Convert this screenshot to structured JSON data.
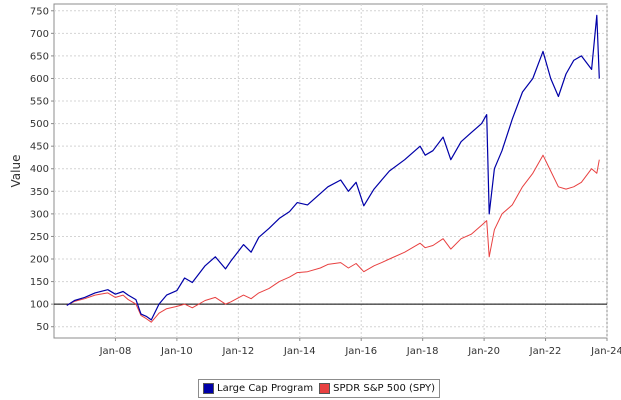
{
  "chart_data": {
    "type": "line",
    "title": "",
    "xlabel": "",
    "ylabel": "Value",
    "ylim": [
      25,
      765
    ],
    "xlim": [
      "2006-01",
      "2024-01"
    ],
    "y_ticks": [
      50,
      100,
      150,
      200,
      250,
      300,
      350,
      400,
      450,
      500,
      550,
      600,
      650,
      700,
      750
    ],
    "x_ticks": [
      {
        "date": "2008-01",
        "label": "Jan-08"
      },
      {
        "date": "2010-01",
        "label": "Jan-10"
      },
      {
        "date": "2012-01",
        "label": "Jan-12"
      },
      {
        "date": "2014-01",
        "label": "Jan-14"
      },
      {
        "date": "2016-01",
        "label": "Jan-16"
      },
      {
        "date": "2018-01",
        "label": "Jan-18"
      },
      {
        "date": "2020-01",
        "label": "Jan-20"
      },
      {
        "date": "2022-01",
        "label": "Jan-22"
      },
      {
        "date": "2024-01",
        "label": "Jan-24"
      }
    ],
    "reference_line": 100,
    "grid": true,
    "legend_position": "bottom",
    "series": [
      {
        "name": "Large Cap Program",
        "color": "#0000a8",
        "x": [
          "2006-06",
          "2006-09",
          "2007-01",
          "2007-05",
          "2007-10",
          "2008-01",
          "2008-04",
          "2008-06",
          "2008-09",
          "2008-11",
          "2009-01",
          "2009-03",
          "2009-06",
          "2009-09",
          "2010-01",
          "2010-04",
          "2010-07",
          "2010-12",
          "2011-04",
          "2011-08",
          "2011-10",
          "2012-03",
          "2012-06",
          "2012-09",
          "2013-01",
          "2013-05",
          "2013-09",
          "2013-12",
          "2014-04",
          "2014-09",
          "2014-12",
          "2015-05",
          "2015-08",
          "2015-11",
          "2016-02",
          "2016-06",
          "2016-09",
          "2016-12",
          "2017-06",
          "2017-12",
          "2018-02",
          "2018-05",
          "2018-09",
          "2018-12",
          "2019-04",
          "2019-08",
          "2019-12",
          "2020-02",
          "2020-03",
          "2020-05",
          "2020-08",
          "2020-12",
          "2021-04",
          "2021-08",
          "2021-12",
          "2022-03",
          "2022-06",
          "2022-09",
          "2022-12",
          "2023-03",
          "2023-07",
          "2023-09",
          "2023-10"
        ],
        "values": [
          97,
          108,
          115,
          125,
          132,
          122,
          128,
          120,
          110,
          78,
          73,
          65,
          100,
          120,
          130,
          158,
          148,
          185,
          205,
          178,
          195,
          232,
          215,
          248,
          268,
          290,
          305,
          325,
          320,
          345,
          360,
          375,
          350,
          370,
          318,
          355,
          375,
          395,
          420,
          450,
          430,
          440,
          470,
          420,
          460,
          480,
          500,
          520,
          300,
          400,
          440,
          510,
          570,
          600,
          660,
          600,
          560,
          610,
          640,
          650,
          620,
          740,
          600
        ],
        "line_width": 1.2
      },
      {
        "name": "SPDR S&P 500 (SPY)",
        "color": "#e84040",
        "x": [
          "2006-06",
          "2006-09",
          "2007-01",
          "2007-05",
          "2007-10",
          "2008-01",
          "2008-04",
          "2008-06",
          "2008-09",
          "2008-11",
          "2009-01",
          "2009-03",
          "2009-06",
          "2009-09",
          "2010-01",
          "2010-04",
          "2010-07",
          "2010-12",
          "2011-04",
          "2011-08",
          "2011-10",
          "2012-03",
          "2012-06",
          "2012-09",
          "2013-01",
          "2013-05",
          "2013-09",
          "2013-12",
          "2014-04",
          "2014-09",
          "2014-12",
          "2015-05",
          "2015-08",
          "2015-11",
          "2016-02",
          "2016-06",
          "2016-09",
          "2016-12",
          "2017-06",
          "2017-12",
          "2018-02",
          "2018-05",
          "2018-09",
          "2018-12",
          "2019-04",
          "2019-08",
          "2019-12",
          "2020-02",
          "2020-03",
          "2020-05",
          "2020-08",
          "2020-12",
          "2021-04",
          "2021-08",
          "2021-12",
          "2022-03",
          "2022-06",
          "2022-09",
          "2022-12",
          "2023-03",
          "2023-07",
          "2023-09",
          "2023-10"
        ],
        "values": [
          98,
          106,
          112,
          120,
          125,
          115,
          120,
          110,
          100,
          75,
          68,
          60,
          80,
          90,
          95,
          100,
          92,
          108,
          115,
          100,
          105,
          120,
          112,
          125,
          135,
          150,
          160,
          170,
          172,
          180,
          188,
          192,
          180,
          190,
          172,
          185,
          192,
          200,
          215,
          235,
          225,
          230,
          245,
          222,
          245,
          255,
          275,
          285,
          205,
          265,
          300,
          320,
          360,
          390,
          430,
          395,
          360,
          355,
          360,
          370,
          400,
          390,
          420
        ],
        "line_width": 1.0
      }
    ]
  }
}
